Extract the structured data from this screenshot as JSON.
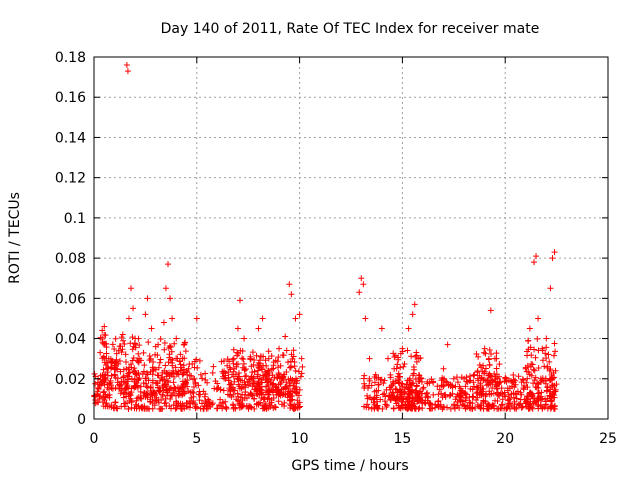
{
  "chart_data": {
    "type": "scatter",
    "title": "Day 140 of 2011, Rate Of TEC Index for receiver mate",
    "xlabel": "GPS time / hours",
    "ylabel": "ROTI / TECUs",
    "xlim": [
      0,
      25
    ],
    "ylim": [
      0,
      0.18
    ],
    "xticks": [
      0,
      5,
      10,
      15,
      20,
      25
    ],
    "yticks": [
      0,
      0.02,
      0.04,
      0.06,
      0.08,
      0.1,
      0.12,
      0.14,
      0.16,
      0.18
    ],
    "xtick_labels": [
      "0",
      "5",
      "10",
      "15",
      "20",
      "25"
    ],
    "ytick_labels": [
      "0",
      "0.02",
      "0.04",
      "0.06",
      "0.08",
      "0.1",
      "0.12",
      "0.14",
      "0.16",
      "0.18"
    ],
    "grid": true,
    "marker": "plus",
    "color": "#ff0000",
    "series": [
      {
        "points": [
          [
            0.1,
            0.012
          ],
          [
            0.2,
            0.02
          ],
          [
            0.3,
            0.033
          ],
          [
            0.4,
            0.044
          ],
          [
            0.5,
            0.046
          ],
          [
            0.6,
            0.03
          ],
          [
            0.8,
            0.018
          ],
          [
            1.0,
            0.025
          ],
          [
            1.2,
            0.034
          ],
          [
            1.4,
            0.042
          ],
          [
            1.6,
            0.176
          ],
          [
            1.65,
            0.173
          ],
          [
            1.7,
            0.05
          ],
          [
            1.8,
            0.065
          ],
          [
            1.9,
            0.055
          ],
          [
            2.0,
            0.04
          ],
          [
            2.2,
            0.03
          ],
          [
            2.5,
            0.052
          ],
          [
            2.6,
            0.06
          ],
          [
            2.8,
            0.045
          ],
          [
            3.0,
            0.036
          ],
          [
            3.2,
            0.028
          ],
          [
            3.4,
            0.048
          ],
          [
            3.5,
            0.065
          ],
          [
            3.6,
            0.077
          ],
          [
            3.7,
            0.06
          ],
          [
            3.8,
            0.05
          ],
          [
            4.0,
            0.04
          ],
          [
            4.3,
            0.03
          ],
          [
            4.6,
            0.025
          ],
          [
            5.0,
            0.05
          ],
          [
            5.2,
            0.022
          ],
          [
            5.5,
            0.018
          ],
          [
            6.0,
            0.015
          ],
          [
            6.4,
            0.02
          ],
          [
            6.8,
            0.03
          ],
          [
            7.0,
            0.045
          ],
          [
            7.1,
            0.059
          ],
          [
            7.3,
            0.04
          ],
          [
            7.6,
            0.03
          ],
          [
            8.0,
            0.045
          ],
          [
            8.2,
            0.05
          ],
          [
            8.5,
            0.03
          ],
          [
            9.0,
            0.035
          ],
          [
            9.3,
            0.041
          ],
          [
            9.5,
            0.067
          ],
          [
            9.6,
            0.062
          ],
          [
            9.8,
            0.05
          ],
          [
            10.0,
            0.052
          ],
          [
            10.1,
            0.03
          ],
          [
            12.9,
            0.063
          ],
          [
            13.0,
            0.07
          ],
          [
            13.1,
            0.067
          ],
          [
            13.2,
            0.05
          ],
          [
            13.4,
            0.03
          ],
          [
            13.7,
            0.022
          ],
          [
            14.0,
            0.045
          ],
          [
            14.3,
            0.03
          ],
          [
            14.6,
            0.025
          ],
          [
            15.0,
            0.035
          ],
          [
            15.3,
            0.045
          ],
          [
            15.5,
            0.052
          ],
          [
            15.6,
            0.057
          ],
          [
            15.8,
            0.03
          ],
          [
            16.0,
            0.015
          ],
          [
            16.5,
            0.012
          ],
          [
            17.0,
            0.025
          ],
          [
            17.2,
            0.037
          ],
          [
            17.5,
            0.02
          ],
          [
            18.0,
            0.02
          ],
          [
            18.5,
            0.022
          ],
          [
            19.0,
            0.035
          ],
          [
            19.3,
            0.054
          ],
          [
            19.5,
            0.03
          ],
          [
            20.0,
            0.02
          ],
          [
            20.5,
            0.017
          ],
          [
            21.0,
            0.025
          ],
          [
            21.2,
            0.045
          ],
          [
            21.4,
            0.078
          ],
          [
            21.5,
            0.081
          ],
          [
            21.6,
            0.05
          ],
          [
            21.8,
            0.035
          ],
          [
            22.0,
            0.04
          ],
          [
            22.2,
            0.065
          ],
          [
            22.3,
            0.08
          ],
          [
            22.4,
            0.083
          ]
        ],
        "bands": [
          [
            0.0,
            10.2,
            0.005,
            0.03
          ],
          [
            0.3,
            2.2,
            0.015,
            0.042
          ],
          [
            2.4,
            4.6,
            0.012,
            0.04
          ],
          [
            6.6,
            7.4,
            0.012,
            0.035
          ],
          [
            7.6,
            9.9,
            0.012,
            0.035
          ],
          [
            13.1,
            22.5,
            0.005,
            0.022
          ],
          [
            14.5,
            16.0,
            0.01,
            0.035
          ],
          [
            18.6,
            19.8,
            0.012,
            0.035
          ],
          [
            21.0,
            22.5,
            0.01,
            0.04
          ]
        ]
      }
    ]
  }
}
